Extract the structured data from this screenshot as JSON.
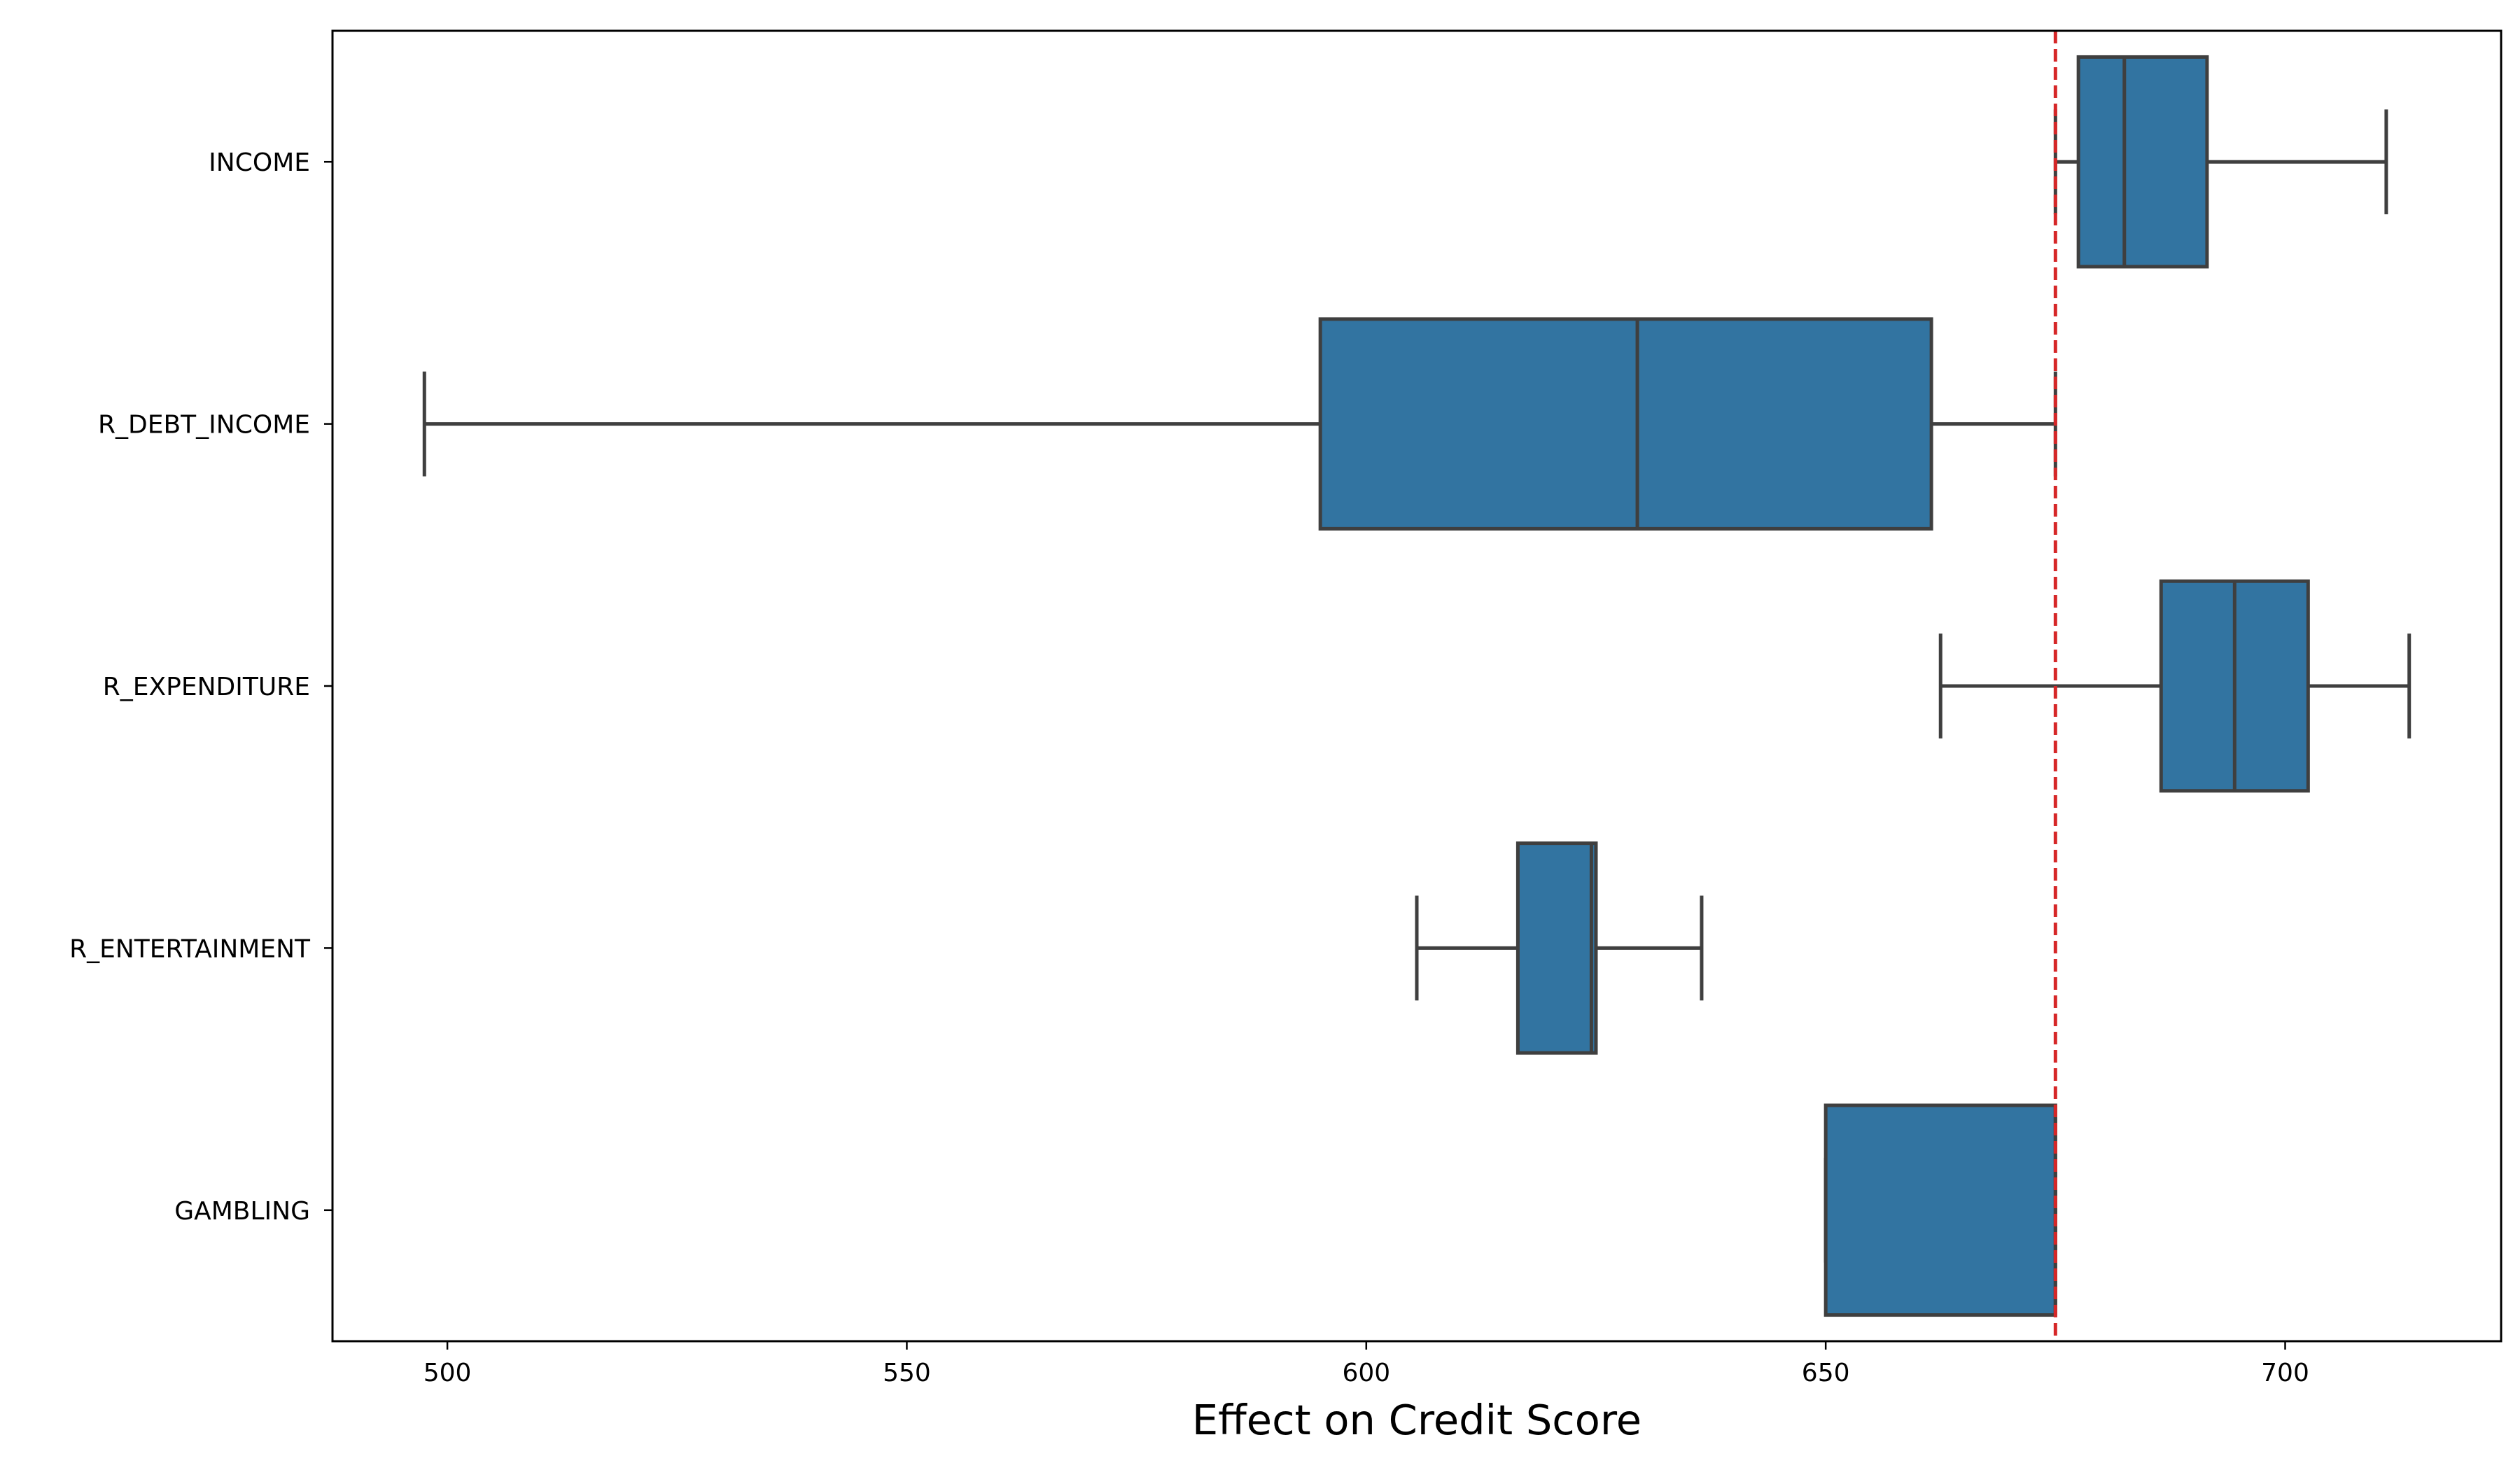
{
  "chart_data": {
    "type": "boxplot",
    "title": "",
    "xlabel": "Effect on Credit Score",
    "ylabel": "",
    "xlim": [
      487.5,
      723.5
    ],
    "x_ticks": [
      500,
      550,
      600,
      650,
      700
    ],
    "grid": false,
    "reference_line": {
      "value": 675,
      "color": "#d62728",
      "style": "dashed"
    },
    "box_color": "#3274a1",
    "edge_color": "#3f3f3f",
    "categories": [
      "INCOME",
      "R_DEBT_INCOME",
      "R_EXPENDITURE",
      "R_ENTERTAINMENT",
      "GAMBLING"
    ],
    "boxes": [
      {
        "label": "INCOME",
        "whislo": 675,
        "q1": 677.5,
        "med": 682.5,
        "q3": 691.5,
        "whishi": 711
      },
      {
        "label": "R_DEBT_INCOME",
        "whislo": 497.5,
        "q1": 595,
        "med": 629.5,
        "q3": 661.5,
        "whishi": 675
      },
      {
        "label": "R_EXPENDITURE",
        "whislo": 662.5,
        "q1": 686.5,
        "med": 694.5,
        "q3": 702.5,
        "whishi": 713.5
      },
      {
        "label": "R_ENTERTAINMENT",
        "whislo": 605.5,
        "q1": 616.5,
        "med": 624.5,
        "q3": 625,
        "whishi": 636.5
      },
      {
        "label": "GAMBLING",
        "whislo": 650,
        "q1": 650,
        "med": 675,
        "q3": 675,
        "whishi": 675
      }
    ]
  }
}
